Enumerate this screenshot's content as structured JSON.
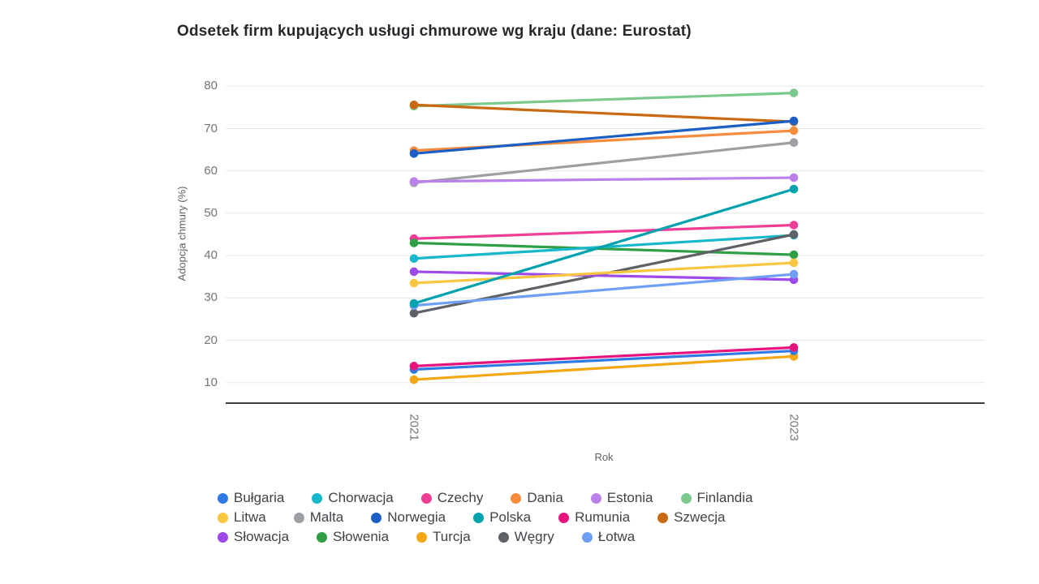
{
  "title": "Odsetek firm kupujących usługi chmurowe wg kraju (dane: Eurostat)",
  "colors": {
    "grid": "#e8e8e8",
    "axis_line": "#3f3f3f",
    "tick_text": "#757575",
    "axis_title_text": "#616161",
    "title_text": "#26282c",
    "legend_text": "#3f4348",
    "background": "#ffffff"
  },
  "chart_data": {
    "type": "line",
    "subtype": "slope-chart",
    "x_categories": [
      "2021",
      "2023"
    ],
    "xlabel": "Rok",
    "ylabel": "Adopcja chmury (%)",
    "ylim": [
      5,
      82
    ],
    "yticks": [
      10,
      20,
      30,
      40,
      50,
      60,
      70,
      80
    ],
    "grid": true,
    "legend_position": "bottom",
    "series": [
      {
        "name": "Dania",
        "color": "#f88c3d",
        "values": [
          64.8,
          69.5
        ]
      },
      {
        "name": "Finlandia",
        "color": "#7cc98e",
        "values": [
          75.3,
          78.4
        ]
      },
      {
        "name": "Szwecja",
        "color": "#c96912",
        "values": [
          75.6,
          71.6
        ]
      },
      {
        "name": "Norwegia",
        "color": "#1b5fc4",
        "values": [
          64.1,
          71.8
        ]
      },
      {
        "name": "Malta",
        "color": "#9c9fa3",
        "values": [
          57.2,
          66.7
        ]
      },
      {
        "name": "Estonia",
        "color": "#bb80ea",
        "values": [
          57.5,
          58.4
        ]
      },
      {
        "name": "Czechy",
        "color": "#ef3e97",
        "values": [
          44.0,
          47.2
        ]
      },
      {
        "name": "Słowenia",
        "color": "#2f9e44",
        "values": [
          43.0,
          40.2
        ]
      },
      {
        "name": "Chorwacja",
        "color": "#18b8cc",
        "values": [
          39.3,
          44.8
        ]
      },
      {
        "name": "Węgry",
        "color": "#5e6166",
        "values": [
          26.4,
          45.0
        ]
      },
      {
        "name": "Słowacja",
        "color": "#9c4bea",
        "values": [
          36.2,
          34.3
        ]
      },
      {
        "name": "Litwa",
        "color": "#f9c640",
        "values": [
          33.5,
          38.3
        ]
      },
      {
        "name": "Łotwa",
        "color": "#6f9ff5",
        "values": [
          28.2,
          35.6
        ]
      },
      {
        "name": "Polska",
        "color": "#00a2ad",
        "values": [
          28.7,
          55.7
        ]
      },
      {
        "name": "Turcja",
        "color": "#f3a712",
        "values": [
          10.7,
          16.2
        ]
      },
      {
        "name": "Bułgaria",
        "color": "#2f7ae5",
        "values": [
          13.1,
          17.5
        ]
      },
      {
        "name": "Rumunia",
        "color": "#e8147e",
        "values": [
          13.9,
          18.3
        ]
      }
    ],
    "legend_rows": [
      [
        "Bułgaria",
        "Chorwacja",
        "Czechy",
        "Dania",
        "Estonia",
        "Finlandia"
      ],
      [
        "Litwa",
        "Malta",
        "Norwegia",
        "Polska",
        "Rumunia",
        "Szwecja"
      ],
      [
        "Słowacja",
        "Słowenia",
        "Turcja",
        "Węgry",
        "Łotwa"
      ]
    ]
  }
}
